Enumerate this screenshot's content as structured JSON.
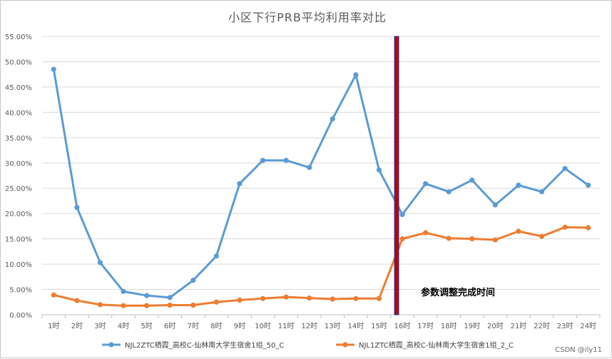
{
  "chart_data": {
    "type": "line",
    "title": "小区下行PRB平均利用率对比",
    "xlabel": "",
    "ylabel": "",
    "categories": [
      "1时",
      "2时",
      "3时",
      "4时",
      "5时",
      "6时",
      "7时",
      "8时",
      "9时",
      "10时",
      "11时",
      "12时",
      "13时",
      "14时",
      "15时",
      "16时",
      "17时",
      "18时",
      "19时",
      "20时",
      "21时",
      "22时",
      "23时",
      "24时"
    ],
    "ylim": [
      0,
      55
    ],
    "yticks": [
      "0.00%",
      "5.00%",
      "10.00%",
      "15.00%",
      "20.00%",
      "25.00%",
      "30.00%",
      "35.00%",
      "40.00%",
      "45.00%",
      "50.00%",
      "55.00%"
    ],
    "grid": true,
    "legend": "bottom",
    "series": [
      {
        "name": "NJL2ZTC栖霞_高校C-仙林南大学生宿舍1组_50_C",
        "color": "#5b9bd5",
        "values": [
          48.5,
          21.2,
          10.3,
          4.6,
          3.8,
          3.4,
          6.8,
          11.6,
          25.9,
          30.5,
          30.5,
          29.1,
          38.7,
          47.4,
          28.6,
          19.8,
          25.9,
          24.3,
          26.6,
          21.7,
          25.6,
          24.3,
          28.9,
          25.6
        ]
      },
      {
        "name": "NJL1ZTC栖霞_高校C-仙林南大学生宿舍1组_2_C",
        "color": "#ed7d31",
        "values": [
          3.9,
          2.8,
          2.0,
          1.8,
          1.8,
          1.9,
          1.9,
          2.5,
          2.9,
          3.2,
          3.5,
          3.3,
          3.1,
          3.2,
          3.2,
          15.0,
          16.2,
          15.1,
          15.0,
          14.8,
          16.5,
          15.5,
          17.3,
          17.2
        ]
      }
    ],
    "marker": {
      "category": "16时",
      "label": "参数调整完成时间",
      "color": "#c00000"
    }
  },
  "watermark": "CSDN @ily11"
}
